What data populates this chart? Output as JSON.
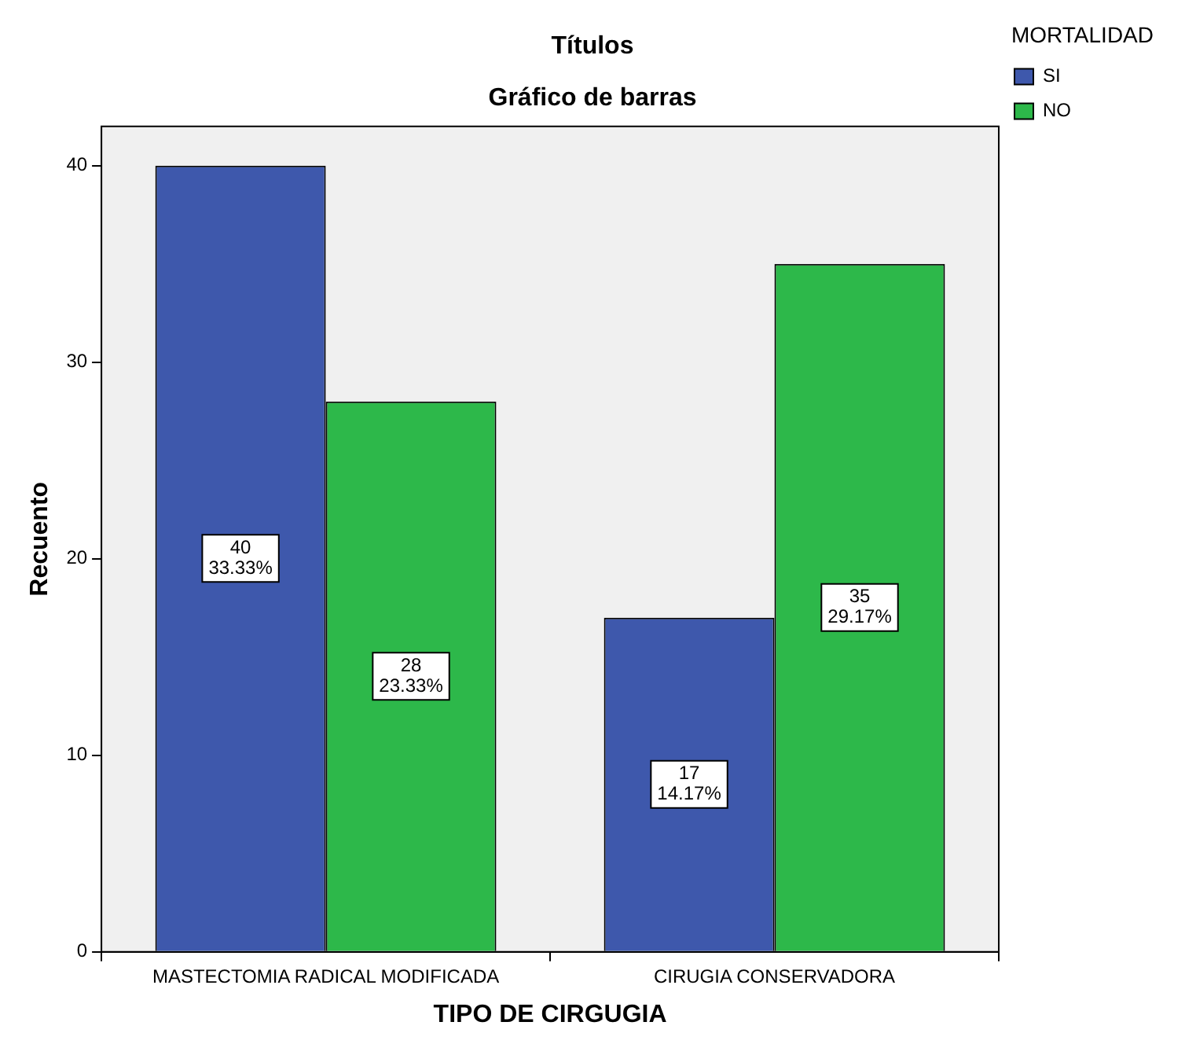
{
  "chart_data": {
    "type": "bar",
    "title": "Títulos",
    "subtitle": "Gráfico de barras",
    "xlabel": "TIPO DE CIRGUGIA",
    "ylabel": "Recuento",
    "legend_title": "MORTALIDAD",
    "categories": [
      "MASTECTOMIA RADICAL MODIFICADA",
      "CIRUGIA CONSERVADORA"
    ],
    "series": [
      {
        "name": "SI",
        "color": "#3e58ac",
        "values": [
          40,
          17
        ],
        "value_labels": [
          "40\n33.33%",
          "17\n14.17%"
        ]
      },
      {
        "name": "NO",
        "color": "#2db84a",
        "values": [
          28,
          35
        ],
        "value_labels": [
          "28\n23.33%",
          "35\n29.17%"
        ]
      }
    ],
    "ylim": [
      0,
      42
    ],
    "yticks": [
      0,
      10,
      20,
      30,
      40
    ],
    "grid": false,
    "legend": "top right"
  }
}
